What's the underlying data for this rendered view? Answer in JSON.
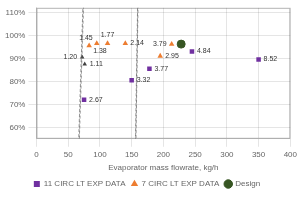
{
  "chart_data": {
    "type": "scatter",
    "xlabel": "Evaporator mass flowrate, kg/h",
    "xlim": [
      0,
      400
    ],
    "xticks": [
      0,
      50,
      100,
      150,
      200,
      250,
      300,
      350,
      400
    ],
    "ylim": [
      0.55,
      1.12
    ],
    "yticks": [
      {
        "value": 0.6,
        "label": "60%"
      },
      {
        "value": 0.7,
        "label": "70%"
      },
      {
        "value": 0.8,
        "label": "80%"
      },
      {
        "value": 0.9,
        "label": "90%"
      },
      {
        "value": 1.0,
        "label": "100%"
      },
      {
        "value": 1.1,
        "label": "110%"
      }
    ],
    "grid": true,
    "legend": "bottom",
    "series": [
      {
        "name": "11 CIRC LT EXP DATA",
        "color": "#7030a0",
        "marker": "square",
        "x": [
          75,
          150,
          178,
          245,
          350
        ],
        "values": [
          0.72,
          0.805,
          0.855,
          0.93,
          0.895
        ],
        "annotations": [
          "2.67",
          "3.32",
          "3.77",
          "4.84",
          "8.52"
        ]
      },
      {
        "name": "7 CIRC LT EXP DATA",
        "color": "#ed7d31",
        "marker": "triangle",
        "x": [
          83,
          95,
          112,
          140,
          195,
          213
        ],
        "values": [
          0.955,
          0.965,
          0.965,
          0.965,
          0.91,
          0.962
        ],
        "annotations": [
          "1.38",
          "1.45",
          "1.77",
          "2.14",
          "2.95",
          "3.79"
        ]
      },
      {
        "name": "Design",
        "color": "#375623",
        "marker": "circle",
        "x": [
          228
        ],
        "values": [
          0.962
        ]
      },
      {
        "color": "#404040",
        "marker": "triangle",
        "x": [
          72,
          76
        ],
        "values": [
          0.905,
          0.875
        ],
        "annotations": [
          "1.20",
          "1.11"
        ]
      }
    ],
    "ellipses": [
      {
        "cx": 71,
        "cy": 0.892,
        "rx": 26,
        "ry": 0.04,
        "angle": 5
      },
      {
        "cx": 158,
        "cy": 0.83,
        "rx": 44,
        "ry": 0.052,
        "angle": 10
      }
    ]
  }
}
